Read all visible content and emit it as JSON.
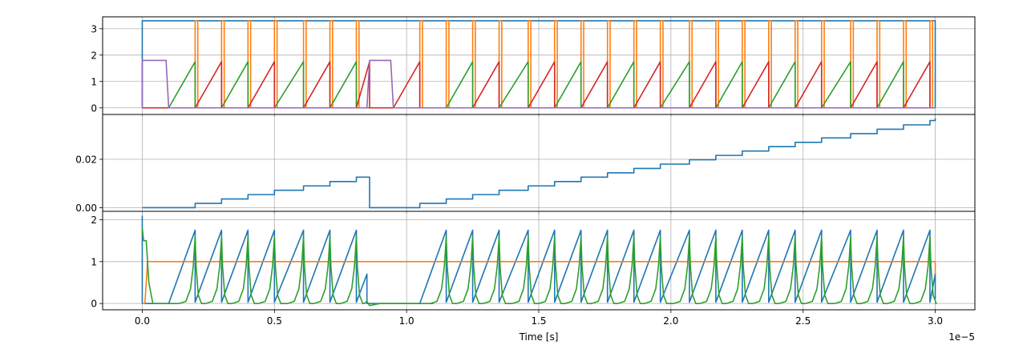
{
  "chart_data": [
    {
      "type": "line",
      "xlim": [
        -1.5e-06,
        3.15e-05
      ],
      "ylim": [
        -0.25,
        3.45
      ],
      "yticks": [
        0,
        1,
        2,
        3
      ],
      "ytick_labels": [
        "0",
        "1",
        "2",
        "3"
      ],
      "grid": true,
      "series": [
        {
          "color": "#1f77b4",
          "points": [
            [
              0,
              0
            ],
            [
              0,
              3.3
            ],
            [
              3e-05,
              3.3
            ],
            [
              3e-05,
              0
            ]
          ]
        },
        {
          "color": "#ff7f0e",
          "kind": "gate",
          "low": 0,
          "high": 3.3,
          "start": 0,
          "end": 3e-05,
          "rising": [
            2e-06,
            3e-06,
            4e-06,
            5e-06,
            6.1e-06,
            7.1e-06,
            8.1e-06,
            1.05e-05,
            1.15e-05,
            1.25e-05,
            1.35e-05,
            1.46e-05,
            1.56e-05,
            1.66e-05,
            1.76e-05,
            1.86e-05,
            1.96e-05,
            2.07e-05,
            2.17e-05,
            2.27e-05,
            2.37e-05,
            2.47e-05,
            2.57e-05,
            2.68e-05,
            2.78e-05,
            2.88e-05,
            2.98e-05
          ],
          "falling": [
            2.1e-06,
            3.1e-06,
            4.1e-06,
            5.1e-06,
            6.2e-06,
            7.2e-06,
            8.2e-06,
            1.06e-05,
            1.16e-05,
            1.26e-05,
            1.36e-05,
            1.47e-05,
            1.57e-05,
            1.67e-05,
            1.77e-05,
            1.87e-05,
            1.97e-05,
            2.08e-05,
            2.18e-05,
            2.28e-05,
            2.38e-05,
            2.48e-05,
            2.58e-05,
            2.69e-05,
            2.79e-05,
            2.89e-05,
            2.99e-05
          ]
        },
        {
          "color": "#2ca02c",
          "kind": "ramps",
          "peak": 1.75,
          "ramps": [
            [
              1e-06,
              2e-06
            ],
            [
              3e-06,
              4e-06
            ],
            [
              5e-06,
              6.1e-06
            ],
            [
              7.1e-06,
              8.1e-06
            ],
            [
              1.15e-05,
              1.25e-05
            ],
            [
              1.35e-05,
              1.46e-05
            ],
            [
              1.56e-05,
              1.66e-05
            ],
            [
              1.76e-05,
              1.86e-05
            ],
            [
              1.96e-05,
              2.07e-05
            ],
            [
              2.17e-05,
              2.27e-05
            ],
            [
              2.37e-05,
              2.47e-05
            ],
            [
              2.57e-05,
              2.68e-05
            ],
            [
              2.78e-05,
              2.88e-05
            ]
          ]
        },
        {
          "color": "#d62728",
          "kind": "ramps",
          "peak": 1.75,
          "ramps": [
            [
              2e-06,
              3e-06
            ],
            [
              4e-06,
              5e-06
            ],
            [
              6.1e-06,
              7.1e-06
            ],
            [
              8.1e-06,
              8.6e-06
            ],
            [
              9.5e-06,
              1.05e-05
            ],
            [
              1.25e-05,
              1.35e-05
            ],
            [
              1.46e-05,
              1.56e-05
            ],
            [
              1.66e-05,
              1.76e-05
            ],
            [
              1.86e-05,
              1.96e-05
            ],
            [
              2.07e-05,
              2.17e-05
            ],
            [
              2.27e-05,
              2.37e-05
            ],
            [
              2.47e-05,
              2.57e-05
            ],
            [
              2.68e-05,
              2.78e-05
            ],
            [
              2.88e-05,
              2.98e-05
            ]
          ]
        },
        {
          "color": "#9467bd",
          "points": [
            [
              0,
              0
            ],
            [
              0,
              1.8
            ],
            [
              9e-07,
              1.8
            ],
            [
              1e-06,
              0
            ],
            [
              8.5e-06,
              0
            ],
            [
              8.6e-06,
              1.8
            ],
            [
              9.4e-06,
              1.8
            ],
            [
              9.5e-06,
              0
            ],
            [
              3e-05,
              0
            ]
          ]
        }
      ]
    },
    {
      "type": "line",
      "xlim": [
        -1.5e-06,
        3.15e-05
      ],
      "ylim": [
        -0.0015,
        0.0385
      ],
      "yticks": [
        0,
        0.02
      ],
      "ytick_labels": [
        "0.00",
        "0.02"
      ],
      "grid": true,
      "series": [
        {
          "color": "#1f77b4",
          "kind": "staircase",
          "step": 0.0018,
          "start": 0,
          "end": 3e-05,
          "steps": [
            2e-06,
            3e-06,
            4e-06,
            5e-06,
            6.1e-06,
            7.1e-06,
            8.1e-06,
            1.05e-05,
            1.15e-05,
            1.25e-05,
            1.35e-05,
            1.46e-05,
            1.56e-05,
            1.66e-05,
            1.76e-05,
            1.86e-05,
            1.96e-05,
            2.07e-05,
            2.17e-05,
            2.27e-05,
            2.37e-05,
            2.47e-05,
            2.57e-05,
            2.68e-05,
            2.78e-05,
            2.88e-05,
            2.98e-05
          ],
          "resets": [
            8.6e-06
          ]
        }
      ]
    },
    {
      "type": "line",
      "xlim": [
        -1.5e-06,
        3.15e-05
      ],
      "xticks": [
        0,
        5e-06,
        1e-05,
        1.5e-05,
        2e-05,
        2.5e-05,
        3e-05
      ],
      "xtick_labels": [
        "0.0",
        "0.5",
        "1.0",
        "1.5",
        "2.0",
        "2.5",
        "3.0"
      ],
      "xlabel": "Time [s]",
      "x_offset_label": "1e−5",
      "ylim": [
        -0.15,
        2.2
      ],
      "yticks": [
        0,
        1,
        2
      ],
      "ytick_labels": [
        "0",
        "1",
        "2"
      ],
      "grid": true,
      "series": [
        {
          "color": "#1f77b4",
          "kind": "sawtooth",
          "peak": 1.75,
          "floor": 0.03,
          "ramps": [
            [
              1e-06,
              3.6e-06
            ],
            [
              3e-06,
              4e-06
            ],
            [
              4e-06,
              5e-06
            ],
            [
              5e-06,
              6.1e-06
            ],
            [
              6.1e-06,
              7.1e-06
            ],
            [
              7.1e-06,
              8.1e-06
            ],
            [
              1.05e-05,
              1.15e-05
            ],
            [
              1.15e-05,
              1.25e-05
            ],
            [
              1.25e-05,
              1.35e-05
            ],
            [
              1.35e-05,
              1.46e-05
            ],
            [
              1.46e-05,
              1.56e-05
            ],
            [
              1.56e-05,
              1.66e-05
            ],
            [
              1.66e-05,
              1.76e-05
            ],
            [
              1.76e-05,
              1.86e-05
            ],
            [
              1.86e-05,
              1.96e-05
            ],
            [
              1.96e-05,
              2.07e-05
            ],
            [
              2.07e-05,
              2.17e-05
            ],
            [
              2.17e-05,
              2.27e-05
            ],
            [
              2.27e-05,
              2.37e-05
            ],
            [
              2.37e-05,
              2.47e-05
            ],
            [
              2.47e-05,
              2.57e-05
            ],
            [
              2.57e-05,
              2.68e-05
            ],
            [
              2.68e-05,
              2.78e-05
            ],
            [
              2.78e-05,
              2.88e-05
            ],
            [
              2.88e-05,
              2.98e-05
            ]
          ],
          "extra": [
            [
              0,
              2.1
            ],
            [
              0,
              0
            ],
            [
              1e-06,
              0
            ],
            [
              2e-06,
              1.75
            ],
            [
              2e-06,
              0.05
            ],
            [
              7.1e-06,
              0.05
            ],
            [
              8.1e-06,
              1.75
            ],
            [
              8.1e-06,
              0.05
            ],
            [
              8.5e-06,
              0.7
            ],
            [
              8.5e-06,
              0
            ],
            [
              1.05e-05,
              0
            ],
            [
              3e-05,
              0.7
            ],
            [
              3e-05,
              0.1
            ]
          ]
        },
        {
          "color": "#ff7f0e",
          "points": [
            [
              0,
              0
            ],
            [
              1e-07,
              0
            ],
            [
              2e-07,
              1
            ],
            [
              3e-05,
              1
            ],
            [
              3e-05,
              0.7
            ]
          ]
        },
        {
          "color": "#2ca02c",
          "kind": "spikes",
          "peak": 1.6,
          "times": [
            2e-06,
            3e-06,
            4e-06,
            5e-06,
            6.1e-06,
            7.1e-06,
            8.1e-06,
            1.15e-05,
            1.25e-05,
            1.35e-05,
            1.46e-05,
            1.56e-05,
            1.66e-05,
            1.76e-05,
            1.86e-05,
            1.96e-05,
            2.07e-05,
            2.17e-05,
            2.27e-05,
            2.37e-05,
            2.47e-05,
            2.57e-05,
            2.68e-05,
            2.78e-05,
            2.88e-05,
            2.98e-05
          ],
          "initial": [
            [
              0,
              1.8
            ],
            [
              5e-08,
              1.5
            ],
            [
              1.5e-07,
              1.5
            ],
            [
              2.5e-07,
              0.5
            ],
            [
              4e-07,
              0
            ],
            [
              8.5e-06,
              0.05
            ],
            [
              8.6e-06,
              -0.05
            ],
            [
              9e-06,
              0
            ]
          ]
        }
      ]
    }
  ]
}
